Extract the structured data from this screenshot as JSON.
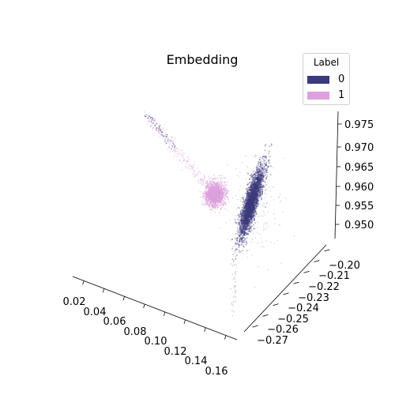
{
  "chart_data": {
    "type": "scatter",
    "projection": "3d",
    "title": "Embedding",
    "legend": {
      "title": "Label",
      "placement": "top-right",
      "entries": [
        {
          "label": "0",
          "color": "#3b3a7c"
        },
        {
          "label": "1",
          "color": "#dda0dd"
        }
      ]
    },
    "x_axis": {
      "label": "",
      "range": [
        0.0,
        0.17
      ],
      "ticks": [
        "0.02",
        "0.04",
        "0.06",
        "0.08",
        "0.10",
        "0.12",
        "0.14",
        "0.16"
      ]
    },
    "y_axis": {
      "label": "",
      "range": [
        -0.275,
        -0.195
      ],
      "ticks": [
        "−0.27",
        "−0.26",
        "−0.25",
        "−0.24",
        "−0.23",
        "−0.22",
        "−0.21",
        "−0.20"
      ]
    },
    "z_axis": {
      "label": "",
      "range": [
        0.946,
        0.977
      ],
      "ticks": [
        "0.950",
        "0.955",
        "0.960",
        "0.965",
        "0.970",
        "0.975"
      ]
    },
    "grid": false,
    "panes": false,
    "series": [
      {
        "name": "0",
        "color": "#3b3a7c",
        "point_count": 4000,
        "cluster": {
          "x": 0.11,
          "y": -0.25,
          "z": 0.958,
          "sx": 0.004,
          "sy": 0.006,
          "sz": 0.0025
        }
      },
      {
        "name": "1",
        "color": "#dda0dd",
        "point_count": 1800,
        "cluster": {
          "x": 0.08,
          "y": -0.235,
          "z": 0.961,
          "sx": 0.003,
          "sy": 0.003,
          "sz": 0.0012
        }
      }
    ]
  }
}
